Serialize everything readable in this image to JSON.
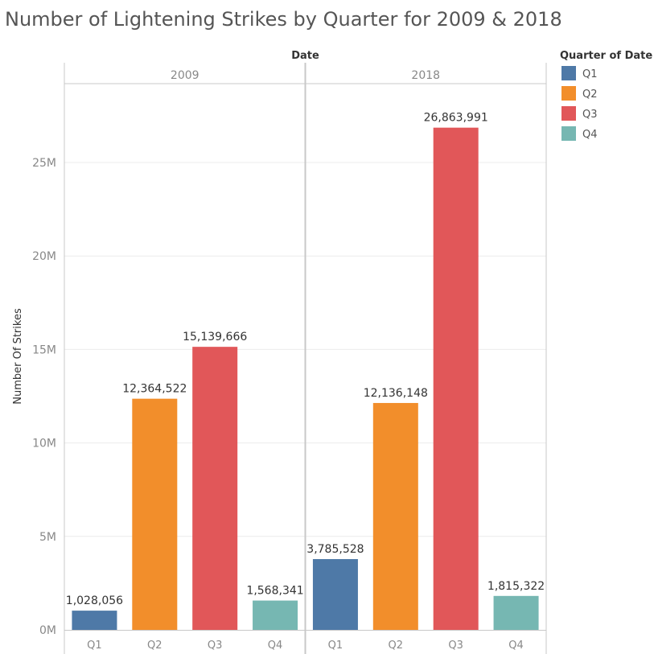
{
  "chart_data": {
    "type": "bar",
    "title": "Number of Lightening Strikes by Quarter for 2009 & 2018",
    "column_header": "Date",
    "ylabel": "Number Of Strikes",
    "ylim": [
      0,
      29000000
    ],
    "yticks": [
      {
        "value": 0,
        "label": "0M"
      },
      {
        "value": 5000000,
        "label": "5M"
      },
      {
        "value": 10000000,
        "label": "10M"
      },
      {
        "value": 15000000,
        "label": "15M"
      },
      {
        "value": 20000000,
        "label": "20M"
      },
      {
        "value": 25000000,
        "label": "25M"
      }
    ],
    "grid": true,
    "categories": [
      "Q1",
      "Q2",
      "Q3",
      "Q4"
    ],
    "panels": [
      {
        "label": "2009",
        "values": [
          1028056,
          12364522,
          15139666,
          1568341
        ],
        "value_labels": [
          "1,028,056",
          "12,364,522",
          "15,139,666",
          "1,568,341"
        ]
      },
      {
        "label": "2018",
        "values": [
          3785528,
          12136148,
          26863991,
          1815322
        ],
        "value_labels": [
          "3,785,528",
          "12,136,148",
          "26,863,991",
          "1,815,322"
        ]
      }
    ],
    "legend": {
      "title": "Quarter of Date",
      "position": "right",
      "items": [
        {
          "label": "Q1",
          "color": "#4e79a7"
        },
        {
          "label": "Q2",
          "color": "#f28e2b"
        },
        {
          "label": "Q3",
          "color": "#e15759"
        },
        {
          "label": "Q4",
          "color": "#76b7b2"
        }
      ]
    }
  }
}
